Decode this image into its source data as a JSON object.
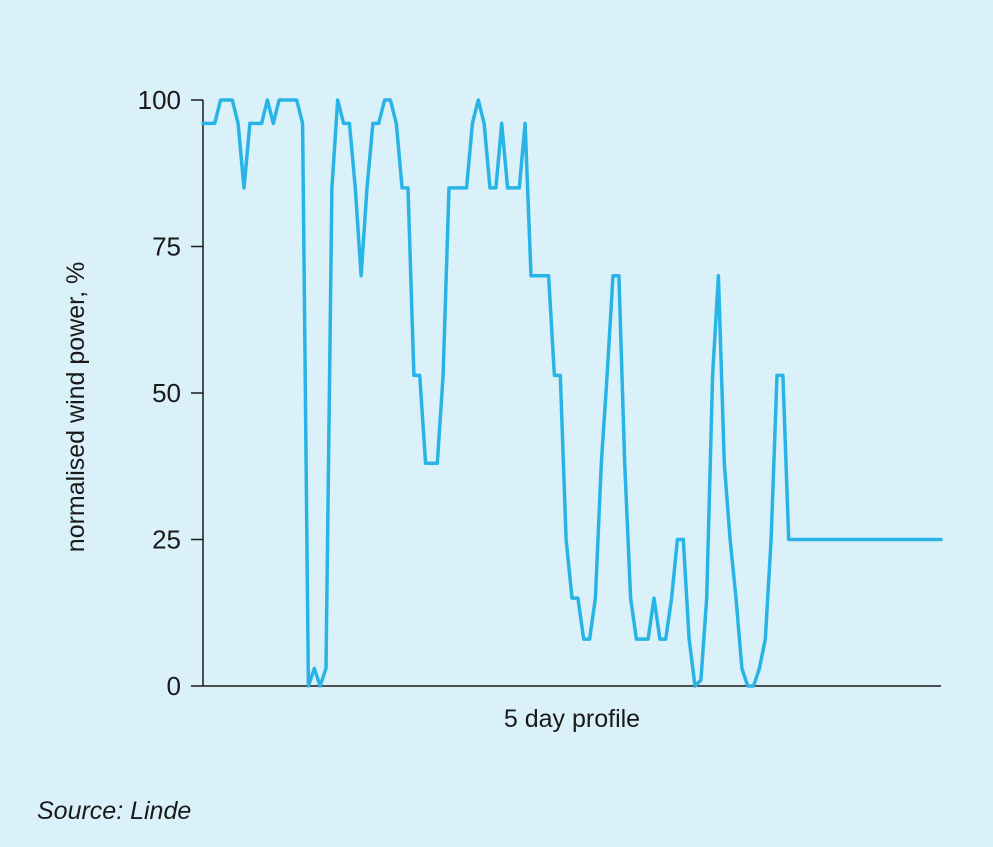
{
  "chart_data": {
    "type": "line",
    "title": "",
    "xlabel": "5 day profile",
    "ylabel": "normalised wind power, %",
    "ylim": [
      0,
      100
    ],
    "xlim": [
      0,
      126
    ],
    "yticks": [
      0,
      25,
      50,
      75,
      100
    ],
    "grid": false,
    "series": [
      {
        "color": "#29b4e6",
        "x": [
          0,
          2,
          3,
          4,
          5,
          6,
          7,
          8,
          9,
          10,
          11,
          12,
          13,
          14,
          15,
          16,
          17,
          18,
          19,
          20,
          21,
          22,
          23,
          24,
          25,
          26,
          27,
          28,
          29,
          30,
          31,
          32,
          33,
          34,
          35,
          36,
          37,
          38,
          39,
          40,
          41,
          42,
          43,
          44,
          45,
          46,
          47,
          48,
          49,
          50,
          51,
          52,
          53,
          54,
          55,
          56,
          57,
          58,
          59,
          60,
          61,
          62,
          63,
          64,
          65,
          66,
          67,
          68,
          69,
          70,
          71,
          72,
          73,
          74,
          75,
          76,
          77,
          78,
          79,
          80,
          81,
          82,
          83,
          84,
          85,
          86,
          87,
          88,
          89,
          90,
          91,
          92,
          93,
          94,
          95,
          96,
          97,
          98,
          99,
          100,
          101,
          102,
          103,
          104,
          105,
          106,
          107,
          108,
          109,
          110,
          111,
          112,
          113,
          114,
          115,
          116,
          117,
          118,
          119,
          120,
          121,
          122,
          123,
          124,
          125,
          126
        ],
        "values": [
          96,
          96,
          100,
          100,
          100,
          96,
          85,
          96,
          96,
          96,
          100,
          96,
          100,
          100,
          100,
          100,
          96,
          0,
          3,
          0,
          3,
          85,
          100,
          96,
          96,
          85,
          70,
          85,
          96,
          96,
          100,
          100,
          96,
          85,
          85,
          53,
          53,
          38,
          38,
          38,
          53,
          85,
          85,
          85,
          85,
          96,
          100,
          96,
          85,
          85,
          96,
          85,
          85,
          85,
          96,
          70,
          70,
          70,
          70,
          53,
          53,
          25,
          15,
          15,
          8,
          8,
          15,
          38,
          53,
          70,
          70,
          38,
          15,
          8,
          8,
          8,
          15,
          8,
          8,
          15,
          25,
          25,
          8,
          0,
          1,
          15,
          53,
          70,
          38,
          25,
          15,
          3,
          0,
          0,
          3,
          8,
          25,
          53,
          53,
          25,
          25,
          25,
          25,
          25,
          25,
          25,
          25,
          25,
          25,
          25,
          25,
          25,
          25,
          25,
          25,
          25,
          25,
          25,
          25,
          25,
          25,
          25,
          25,
          25,
          25,
          25
        ]
      }
    ]
  },
  "source": "Source: Linde"
}
